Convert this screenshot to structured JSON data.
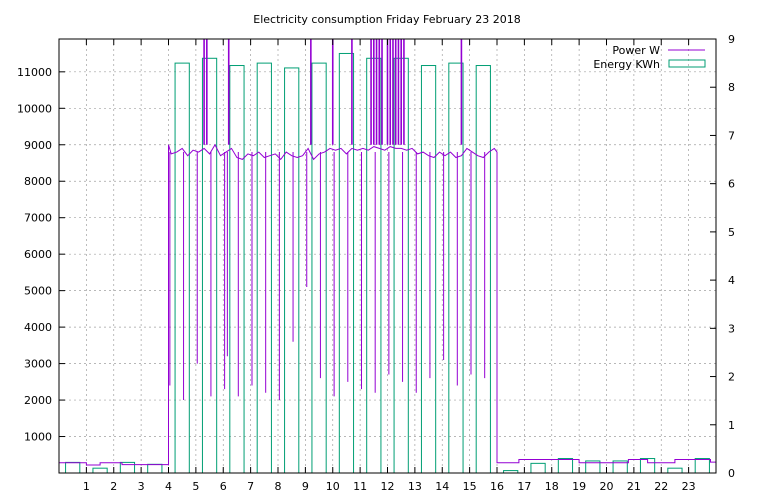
{
  "chart_data": {
    "type": "line",
    "title": "Electricity consumption Friday February 23 2018",
    "xlabel": "",
    "ylabel": "",
    "y2label": "",
    "xlim": [
      0,
      24
    ],
    "ylim": [
      0,
      11900
    ],
    "y2lim": [
      0,
      9
    ],
    "x_ticks": [
      1,
      2,
      3,
      4,
      5,
      6,
      7,
      8,
      9,
      10,
      11,
      12,
      13,
      14,
      15,
      16,
      17,
      18,
      19,
      20,
      21,
      22,
      23
    ],
    "y_ticks": [
      1000,
      2000,
      3000,
      4000,
      5000,
      6000,
      7000,
      8000,
      9000,
      10000,
      11000
    ],
    "y2_ticks": [
      0,
      1,
      2,
      3,
      4,
      5,
      6,
      7,
      8,
      9
    ],
    "grid": true,
    "legend_position": "top-right",
    "series": [
      {
        "name": "Power W",
        "axis": "y",
        "style": "step-line",
        "color": "#9400d3",
        "points": [
          [
            0,
            280
          ],
          [
            1,
            280
          ],
          [
            1,
            220
          ],
          [
            1.5,
            220
          ],
          [
            1.5,
            280
          ],
          [
            2.3,
            280
          ],
          [
            2.3,
            230
          ],
          [
            4,
            230
          ],
          [
            4,
            9000
          ],
          [
            4.1,
            8750
          ],
          [
            4.3,
            8800
          ],
          [
            4.5,
            8900
          ],
          [
            4.7,
            8700
          ],
          [
            4.9,
            8850
          ],
          [
            5.1,
            8800
          ],
          [
            5.3,
            8900
          ],
          [
            5.5,
            8750
          ],
          [
            5.7,
            9000
          ],
          [
            5.9,
            8700
          ],
          [
            6.1,
            8800
          ],
          [
            6.3,
            8900
          ],
          [
            6.5,
            8650
          ],
          [
            6.7,
            8600
          ],
          [
            6.9,
            8750
          ],
          [
            7.1,
            8700
          ],
          [
            7.3,
            8800
          ],
          [
            7.5,
            8650
          ],
          [
            7.7,
            8700
          ],
          [
            7.9,
            8750
          ],
          [
            8.1,
            8600
          ],
          [
            8.3,
            8800
          ],
          [
            8.5,
            8700
          ],
          [
            8.7,
            8650
          ],
          [
            8.9,
            8700
          ],
          [
            9.1,
            8900
          ],
          [
            9.3,
            8600
          ],
          [
            9.5,
            8750
          ],
          [
            9.7,
            8800
          ],
          [
            9.9,
            8900
          ],
          [
            10.1,
            8850
          ],
          [
            10.3,
            8900
          ],
          [
            10.5,
            8750
          ],
          [
            10.7,
            8900
          ],
          [
            10.9,
            8850
          ],
          [
            11.1,
            8900
          ],
          [
            11.3,
            8850
          ],
          [
            11.5,
            8950
          ],
          [
            11.7,
            8900
          ],
          [
            11.9,
            8850
          ],
          [
            12.1,
            8950
          ],
          [
            12.3,
            8900
          ],
          [
            12.5,
            8900
          ],
          [
            12.7,
            8850
          ],
          [
            12.9,
            8900
          ],
          [
            13.1,
            8750
          ],
          [
            13.3,
            8800
          ],
          [
            13.5,
            8700
          ],
          [
            13.7,
            8650
          ],
          [
            13.9,
            8800
          ],
          [
            14.1,
            8700
          ],
          [
            14.3,
            8800
          ],
          [
            14.5,
            8650
          ],
          [
            14.7,
            8700
          ],
          [
            14.9,
            8900
          ],
          [
            15.1,
            8800
          ],
          [
            15.3,
            8700
          ],
          [
            15.5,
            8650
          ],
          [
            15.7,
            8800
          ],
          [
            15.9,
            8900
          ],
          [
            16,
            8800
          ],
          [
            16,
            280
          ],
          [
            16.8,
            280
          ],
          [
            16.8,
            370
          ],
          [
            19,
            370
          ],
          [
            19,
            280
          ],
          [
            20.8,
            280
          ],
          [
            20.8,
            370
          ],
          [
            21.5,
            370
          ],
          [
            21.5,
            280
          ],
          [
            22.5,
            280
          ],
          [
            22.5,
            370
          ],
          [
            23.8,
            370
          ],
          [
            23.8,
            300
          ],
          [
            24,
            300
          ]
        ],
        "spikes_up": [
          5.3,
          5.4,
          6.2,
          9.2,
          10.0,
          10.7,
          11.4,
          11.5,
          11.6,
          11.7,
          11.8,
          12.0,
          12.1,
          12.2,
          12.3,
          12.4,
          12.5,
          12.6,
          14.7
        ],
        "spikes_down": [
          4.05,
          4.55,
          5.05,
          5.55,
          6.05,
          6.15,
          6.55,
          7.05,
          7.55,
          8.05,
          8.55,
          9.05,
          9.55,
          10.05,
          10.55,
          11.05,
          11.55,
          12.05,
          12.55,
          13.05,
          13.55,
          14.05,
          14.55,
          15.05,
          15.55,
          16.0
        ]
      },
      {
        "name": "Energy KWh",
        "axis": "y2",
        "style": "bars",
        "color": "#009e73",
        "x": [
          0,
          1,
          2,
          3,
          4,
          5,
          6,
          7,
          8,
          9,
          10,
          11,
          12,
          13,
          14,
          15,
          16,
          17,
          18,
          19,
          20,
          21,
          22,
          23
        ],
        "values": [
          0.22,
          0.1,
          0.22,
          0.18,
          8.5,
          8.6,
          8.45,
          8.5,
          8.4,
          8.5,
          8.7,
          8.6,
          8.6,
          8.45,
          8.5,
          8.45,
          0.05,
          0.2,
          0.3,
          0.25,
          0.25,
          0.3,
          0.1,
          0.3
        ]
      }
    ]
  }
}
